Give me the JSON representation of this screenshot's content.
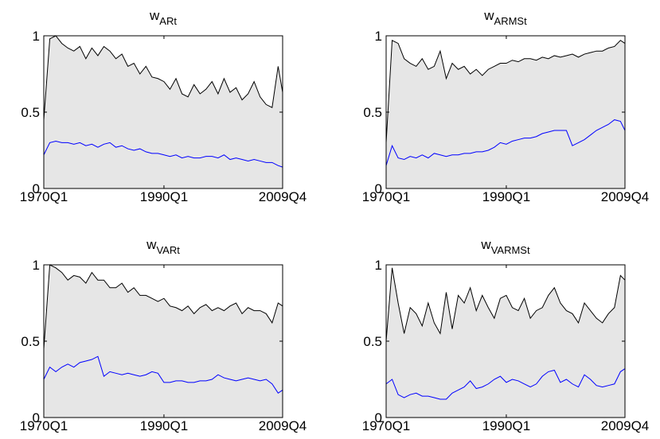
{
  "chart_data": [
    {
      "type": "line",
      "title": "w",
      "title_subscript": "ARt",
      "x": [
        1970,
        1971,
        1972,
        1973,
        1974,
        1975,
        1976,
        1977,
        1978,
        1979,
        1980,
        1981,
        1982,
        1983,
        1984,
        1985,
        1986,
        1987,
        1988,
        1989,
        1990,
        1991,
        1992,
        1993,
        1994,
        1995,
        1996,
        1997,
        1998,
        1999,
        2000,
        2001,
        2002,
        2003,
        2004,
        2005,
        2006,
        2007,
        2008,
        2009,
        2009.75
      ],
      "xlim": [
        1970,
        2009.75
      ],
      "xticks": [
        {
          "value": 1970,
          "label": "1970Q1"
        },
        {
          "value": 1990,
          "label": "1990Q1"
        },
        {
          "value": 2009.75,
          "label": "2009Q4"
        }
      ],
      "ylim": [
        0,
        1
      ],
      "yticks": [
        0,
        0.5,
        1
      ],
      "series": [
        {
          "color": "#000000",
          "fill": "#e6e6e6",
          "values": [
            0.45,
            0.98,
            1.0,
            0.95,
            0.92,
            0.9,
            0.93,
            0.85,
            0.92,
            0.87,
            0.93,
            0.9,
            0.85,
            0.88,
            0.8,
            0.82,
            0.75,
            0.8,
            0.73,
            0.72,
            0.7,
            0.65,
            0.72,
            0.62,
            0.6,
            0.68,
            0.62,
            0.65,
            0.7,
            0.62,
            0.72,
            0.63,
            0.66,
            0.58,
            0.62,
            0.7,
            0.6,
            0.55,
            0.53,
            0.8,
            0.63
          ]
        },
        {
          "color": "#0000ff",
          "values": [
            0.22,
            0.3,
            0.31,
            0.3,
            0.3,
            0.29,
            0.3,
            0.28,
            0.29,
            0.27,
            0.29,
            0.3,
            0.27,
            0.28,
            0.26,
            0.25,
            0.26,
            0.24,
            0.23,
            0.23,
            0.22,
            0.21,
            0.22,
            0.2,
            0.21,
            0.2,
            0.2,
            0.21,
            0.21,
            0.2,
            0.22,
            0.19,
            0.2,
            0.19,
            0.18,
            0.19,
            0.18,
            0.17,
            0.17,
            0.15,
            0.14
          ]
        }
      ]
    },
    {
      "type": "line",
      "title": "w",
      "title_subscript": "ARMSt",
      "x": [
        1970,
        1971,
        1972,
        1973,
        1974,
        1975,
        1976,
        1977,
        1978,
        1979,
        1980,
        1981,
        1982,
        1983,
        1984,
        1985,
        1986,
        1987,
        1988,
        1989,
        1990,
        1991,
        1992,
        1993,
        1994,
        1995,
        1996,
        1997,
        1998,
        1999,
        2000,
        2001,
        2002,
        2003,
        2004,
        2005,
        2006,
        2007,
        2008,
        2009,
        2009.75
      ],
      "xlim": [
        1970,
        2009.75
      ],
      "xticks": [
        {
          "value": 1970,
          "label": "1970Q1"
        },
        {
          "value": 1990,
          "label": "1990Q1"
        },
        {
          "value": 2009.75,
          "label": "2009Q4"
        }
      ],
      "ylim": [
        0,
        1
      ],
      "yticks": [
        0,
        0.5,
        1
      ],
      "series": [
        {
          "color": "#000000",
          "fill": "#e6e6e6",
          "values": [
            0.3,
            0.97,
            0.95,
            0.85,
            0.82,
            0.8,
            0.85,
            0.78,
            0.8,
            0.9,
            0.72,
            0.82,
            0.78,
            0.8,
            0.75,
            0.78,
            0.74,
            0.78,
            0.8,
            0.82,
            0.82,
            0.84,
            0.83,
            0.85,
            0.85,
            0.84,
            0.86,
            0.85,
            0.87,
            0.86,
            0.87,
            0.88,
            0.86,
            0.88,
            0.89,
            0.9,
            0.9,
            0.92,
            0.93,
            0.97,
            0.95
          ]
        },
        {
          "color": "#0000ff",
          "values": [
            0.15,
            0.28,
            0.2,
            0.19,
            0.21,
            0.2,
            0.22,
            0.2,
            0.23,
            0.22,
            0.21,
            0.22,
            0.22,
            0.23,
            0.23,
            0.24,
            0.24,
            0.25,
            0.27,
            0.3,
            0.29,
            0.31,
            0.32,
            0.33,
            0.33,
            0.34,
            0.36,
            0.37,
            0.38,
            0.38,
            0.38,
            0.28,
            0.3,
            0.32,
            0.35,
            0.38,
            0.4,
            0.42,
            0.45,
            0.44,
            0.38
          ]
        }
      ]
    },
    {
      "type": "line",
      "title": "w",
      "title_subscript": "VARt",
      "x": [
        1970,
        1971,
        1972,
        1973,
        1974,
        1975,
        1976,
        1977,
        1978,
        1979,
        1980,
        1981,
        1982,
        1983,
        1984,
        1985,
        1986,
        1987,
        1988,
        1989,
        1990,
        1991,
        1992,
        1993,
        1994,
        1995,
        1996,
        1997,
        1998,
        1999,
        2000,
        2001,
        2002,
        2003,
        2004,
        2005,
        2006,
        2007,
        2008,
        2009,
        2009.75
      ],
      "xlim": [
        1970,
        2009.75
      ],
      "xticks": [
        {
          "value": 1970,
          "label": "1970Q1"
        },
        {
          "value": 1990,
          "label": "1990Q1"
        },
        {
          "value": 2009.75,
          "label": "2009Q4"
        }
      ],
      "ylim": [
        0,
        1
      ],
      "yticks": [
        0,
        0.5,
        1
      ],
      "series": [
        {
          "color": "#000000",
          "fill": "#e6e6e6",
          "values": [
            0.45,
            1.0,
            0.98,
            0.95,
            0.9,
            0.93,
            0.92,
            0.88,
            0.95,
            0.9,
            0.9,
            0.85,
            0.85,
            0.88,
            0.82,
            0.85,
            0.8,
            0.8,
            0.78,
            0.76,
            0.78,
            0.73,
            0.72,
            0.7,
            0.73,
            0.68,
            0.72,
            0.74,
            0.7,
            0.72,
            0.7,
            0.73,
            0.75,
            0.68,
            0.72,
            0.7,
            0.7,
            0.68,
            0.62,
            0.75,
            0.73
          ]
        },
        {
          "color": "#0000ff",
          "values": [
            0.25,
            0.33,
            0.3,
            0.33,
            0.35,
            0.33,
            0.36,
            0.37,
            0.38,
            0.4,
            0.27,
            0.3,
            0.29,
            0.28,
            0.29,
            0.28,
            0.27,
            0.28,
            0.3,
            0.29,
            0.23,
            0.23,
            0.24,
            0.24,
            0.23,
            0.23,
            0.24,
            0.24,
            0.25,
            0.28,
            0.26,
            0.25,
            0.24,
            0.25,
            0.26,
            0.25,
            0.24,
            0.25,
            0.22,
            0.16,
            0.18
          ]
        }
      ]
    },
    {
      "type": "line",
      "title": "w",
      "title_subscript": "VARMSt",
      "x": [
        1970,
        1971,
        1972,
        1973,
        1974,
        1975,
        1976,
        1977,
        1978,
        1979,
        1980,
        1981,
        1982,
        1983,
        1984,
        1985,
        1986,
        1987,
        1988,
        1989,
        1990,
        1991,
        1992,
        1993,
        1994,
        1995,
        1996,
        1997,
        1998,
        1999,
        2000,
        2001,
        2002,
        2003,
        2004,
        2005,
        2006,
        2007,
        2008,
        2009,
        2009.75
      ],
      "xlim": [
        1970,
        2009.75
      ],
      "xticks": [
        {
          "value": 1970,
          "label": "1970Q1"
        },
        {
          "value": 1990,
          "label": "1990Q1"
        },
        {
          "value": 2009.75,
          "label": "2009Q4"
        }
      ],
      "ylim": [
        0,
        1
      ],
      "yticks": [
        0,
        0.5,
        1
      ],
      "series": [
        {
          "color": "#000000",
          "fill": "#e6e6e6",
          "values": [
            0.5,
            0.98,
            0.75,
            0.55,
            0.72,
            0.68,
            0.6,
            0.75,
            0.62,
            0.55,
            0.82,
            0.58,
            0.8,
            0.75,
            0.85,
            0.7,
            0.8,
            0.72,
            0.65,
            0.78,
            0.8,
            0.72,
            0.7,
            0.78,
            0.65,
            0.7,
            0.72,
            0.8,
            0.85,
            0.75,
            0.7,
            0.68,
            0.62,
            0.75,
            0.7,
            0.65,
            0.62,
            0.68,
            0.72,
            0.93,
            0.9
          ]
        },
        {
          "color": "#0000ff",
          "values": [
            0.22,
            0.25,
            0.15,
            0.13,
            0.15,
            0.16,
            0.14,
            0.14,
            0.13,
            0.12,
            0.12,
            0.16,
            0.18,
            0.2,
            0.24,
            0.19,
            0.2,
            0.22,
            0.25,
            0.27,
            0.23,
            0.25,
            0.24,
            0.22,
            0.2,
            0.22,
            0.27,
            0.3,
            0.31,
            0.23,
            0.25,
            0.22,
            0.2,
            0.28,
            0.25,
            0.21,
            0.2,
            0.21,
            0.22,
            0.3,
            0.32
          ]
        }
      ]
    }
  ]
}
